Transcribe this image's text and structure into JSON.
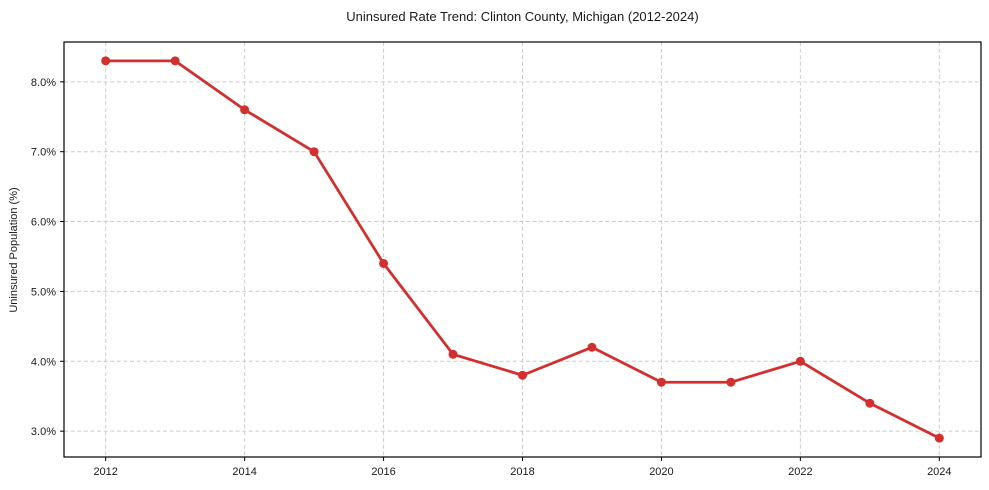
{
  "chart_data": {
    "type": "line",
    "title": "Uninsured Rate Trend: Clinton County, Michigan (2012-2024)",
    "xlabel": "",
    "ylabel": "Uninsured Population (%)",
    "x": [
      2012,
      2013,
      2014,
      2015,
      2016,
      2017,
      2018,
      2019,
      2020,
      2021,
      2022,
      2023,
      2024
    ],
    "values": [
      8.3,
      8.3,
      7.6,
      7.0,
      5.4,
      4.1,
      3.8,
      4.2,
      3.7,
      3.7,
      4.0,
      3.4,
      2.9
    ],
    "xticks": [
      2012,
      2014,
      2016,
      2018,
      2020,
      2022,
      2024
    ],
    "xtick_labels": [
      "2012",
      "2014",
      "2016",
      "2018",
      "2020",
      "2022",
      "2024"
    ],
    "yticks": [
      3.0,
      4.0,
      5.0,
      6.0,
      7.0,
      8.0
    ],
    "ytick_labels": [
      "3.0%",
      "4.0%",
      "5.0%",
      "6.0%",
      "7.0%",
      "8.0%"
    ],
    "xlim": [
      2011.4,
      2024.6
    ],
    "ylim": [
      2.63,
      8.57
    ],
    "grid": true,
    "legend": false,
    "line_color": "#d32f2f",
    "marker": "circle",
    "background_color": "#ffffff",
    "grid_color": "#cccccc",
    "axis_color": "#000000"
  }
}
